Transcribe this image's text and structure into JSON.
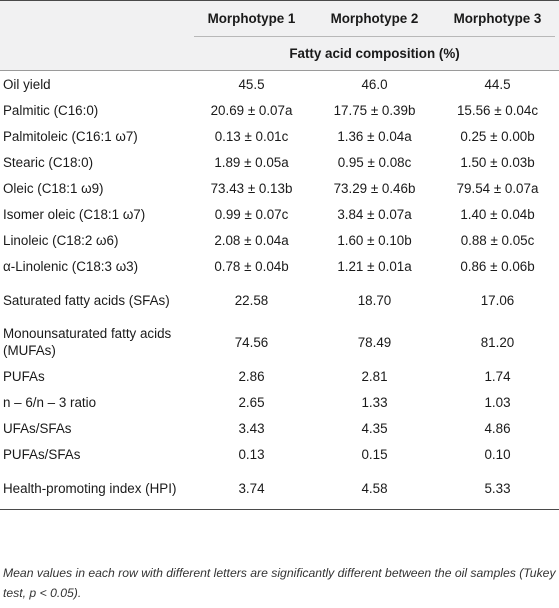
{
  "table": {
    "headers": [
      "",
      "Morphotype 1",
      "Morphotype 2",
      "Morphotype 3"
    ],
    "subheader": "Fatty acid composition (%)",
    "rows": [
      {
        "label": "Oil yield",
        "values": [
          "45.5",
          "46.0",
          "44.5"
        ]
      },
      {
        "label": "Palmitic (C16:0)",
        "values": [
          "20.69 ± 0.07a",
          "17.75 ± 0.39b",
          "15.56 ± 0.04c"
        ]
      },
      {
        "label": "Palmitoleic (C16:1 ω7)",
        "values": [
          "0.13 ± 0.01c",
          "1.36 ± 0.04a",
          "0.25 ± 0.00b"
        ]
      },
      {
        "label": "Stearic (C18:0)",
        "values": [
          "1.89 ± 0.05a",
          "0.95 ± 0.08c",
          "1.50 ± 0.03b"
        ]
      },
      {
        "label": "Oleic (C18:1 ω9)",
        "values": [
          "73.43 ± 0.13b",
          "73.29 ± 0.46b",
          "79.54 ± 0.07a"
        ]
      },
      {
        "label": "Isomer oleic (C18:1 ω7)",
        "values": [
          "0.99 ± 0.07c",
          "3.84 ± 0.07a",
          "1.40 ± 0.04b"
        ]
      },
      {
        "label": "Linoleic (C18:2 ω6)",
        "values": [
          "2.08 ± 0.04a",
          "1.60 ± 0.10b",
          "0.88 ± 0.05c"
        ]
      },
      {
        "label": "α-Linolenic (C18:3 ω3)",
        "values": [
          "0.78 ± 0.04b",
          "1.21 ± 0.01a",
          "0.86 ± 0.06b"
        ]
      },
      {
        "label": "Saturated fatty acids (SFAs)",
        "values": [
          "22.58",
          "18.70",
          "17.06"
        ]
      },
      {
        "label": "Monounsaturated fatty acids (MUFAs)",
        "values": [
          "74.56",
          "78.49",
          "81.20"
        ]
      },
      {
        "label": "PUFAs",
        "values": [
          "2.86",
          "2.81",
          "1.74"
        ]
      },
      {
        "label": "n – 6/n – 3 ratio",
        "values": [
          "2.65",
          "1.33",
          "1.03"
        ]
      },
      {
        "label": "UFAs/SFAs",
        "values": [
          "3.43",
          "4.35",
          "4.86"
        ]
      },
      {
        "label": "PUFAs/SFAs",
        "values": [
          "0.13",
          "0.15",
          "0.10"
        ]
      },
      {
        "label": "Health-promoting index (HPI)",
        "values": [
          "3.74",
          "4.58",
          "5.33"
        ]
      }
    ]
  },
  "footnote": "Mean values in each row with different letters are significantly different between the oil samples (Tukey test, p < 0.05)."
}
